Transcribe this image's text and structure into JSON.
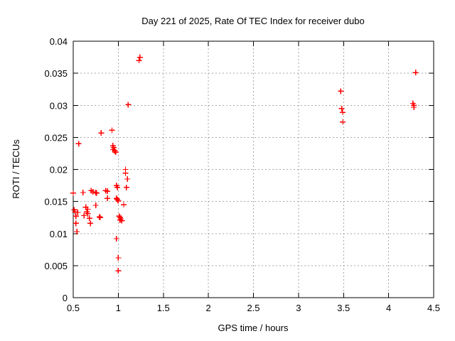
{
  "chart_data": {
    "type": "scatter",
    "title": "Day 221 of 2025, Rate Of TEC Index for receiver dubo",
    "xlabel": "GPS time / hours",
    "ylabel": "ROTI / TECUs",
    "xlim": [
      0.5,
      4.5
    ],
    "ylim": [
      0,
      0.04
    ],
    "grid": "dotted, both axes",
    "legend": "none",
    "marker": "plus",
    "marker_color": "#ff0000",
    "xticks": [
      {
        "v": 0.5,
        "label": "0.5"
      },
      {
        "v": 1,
        "label": "1"
      },
      {
        "v": 1.5,
        "label": "1.5"
      },
      {
        "v": 2,
        "label": "2"
      },
      {
        "v": 2.5,
        "label": "2.5"
      },
      {
        "v": 3,
        "label": "3"
      },
      {
        "v": 3.5,
        "label": "3.5"
      },
      {
        "v": 4,
        "label": "4"
      },
      {
        "v": 4.5,
        "label": "4.5"
      }
    ],
    "yticks": [
      {
        "v": 0,
        "label": "0"
      },
      {
        "v": 0.005,
        "label": "0.005"
      },
      {
        "v": 0.01,
        "label": "0.01"
      },
      {
        "v": 0.015,
        "label": "0.015"
      },
      {
        "v": 0.02,
        "label": "0.02"
      },
      {
        "v": 0.025,
        "label": "0.025"
      },
      {
        "v": 0.03,
        "label": "0.03"
      },
      {
        "v": 0.035,
        "label": "0.035"
      },
      {
        "v": 0.04,
        "label": "0.04"
      }
    ],
    "points": [
      [
        0.5,
        0.0163
      ],
      [
        0.51,
        0.0137
      ],
      [
        0.52,
        0.0134
      ],
      [
        0.53,
        0.0127
      ],
      [
        0.53,
        0.0116
      ],
      [
        0.54,
        0.0103
      ],
      [
        0.55,
        0.0133
      ],
      [
        0.56,
        0.024
      ],
      [
        0.61,
        0.0164
      ],
      [
        0.62,
        0.0128
      ],
      [
        0.64,
        0.0141
      ],
      [
        0.65,
        0.0134
      ],
      [
        0.66,
        0.0138
      ],
      [
        0.66,
        0.0131
      ],
      [
        0.68,
        0.0124
      ],
      [
        0.69,
        0.0116
      ],
      [
        0.7,
        0.0167
      ],
      [
        0.72,
        0.0165
      ],
      [
        0.75,
        0.0164
      ],
      [
        0.76,
        0.0163
      ],
      [
        0.75,
        0.0144
      ],
      [
        0.79,
        0.0126
      ],
      [
        0.8,
        0.0125
      ],
      [
        0.81,
        0.0257
      ],
      [
        0.86,
        0.0167
      ],
      [
        0.88,
        0.0166
      ],
      [
        0.88,
        0.0155
      ],
      [
        0.93,
        0.0261
      ],
      [
        0.94,
        0.0237
      ],
      [
        0.95,
        0.0234
      ],
      [
        0.94,
        0.0231
      ],
      [
        0.96,
        0.0229
      ],
      [
        0.97,
        0.0227
      ],
      [
        0.98,
        0.0175
      ],
      [
        0.99,
        0.0172
      ],
      [
        0.98,
        0.0155
      ],
      [
        0.99,
        0.0153
      ],
      [
        1.0,
        0.0151
      ],
      [
        0.98,
        0.0092
      ],
      [
        1.0,
        0.0062
      ],
      [
        1.0,
        0.0042
      ],
      [
        1.01,
        0.0127
      ],
      [
        1.02,
        0.0125
      ],
      [
        1.03,
        0.0123
      ],
      [
        1.02,
        0.0121
      ],
      [
        1.04,
        0.012
      ],
      [
        1.06,
        0.0145
      ],
      [
        1.08,
        0.02
      ],
      [
        1.08,
        0.0194
      ],
      [
        1.1,
        0.0185
      ],
      [
        1.09,
        0.0172
      ],
      [
        1.11,
        0.0301
      ],
      [
        1.23,
        0.037
      ],
      [
        1.24,
        0.0375
      ],
      [
        3.47,
        0.0322
      ],
      [
        3.48,
        0.0295
      ],
      [
        3.49,
        0.0289
      ],
      [
        3.49,
        0.0274
      ],
      [
        4.3,
        0.0351
      ],
      [
        4.27,
        0.0303
      ],
      [
        4.28,
        0.03
      ],
      [
        4.28,
        0.0297
      ]
    ]
  }
}
